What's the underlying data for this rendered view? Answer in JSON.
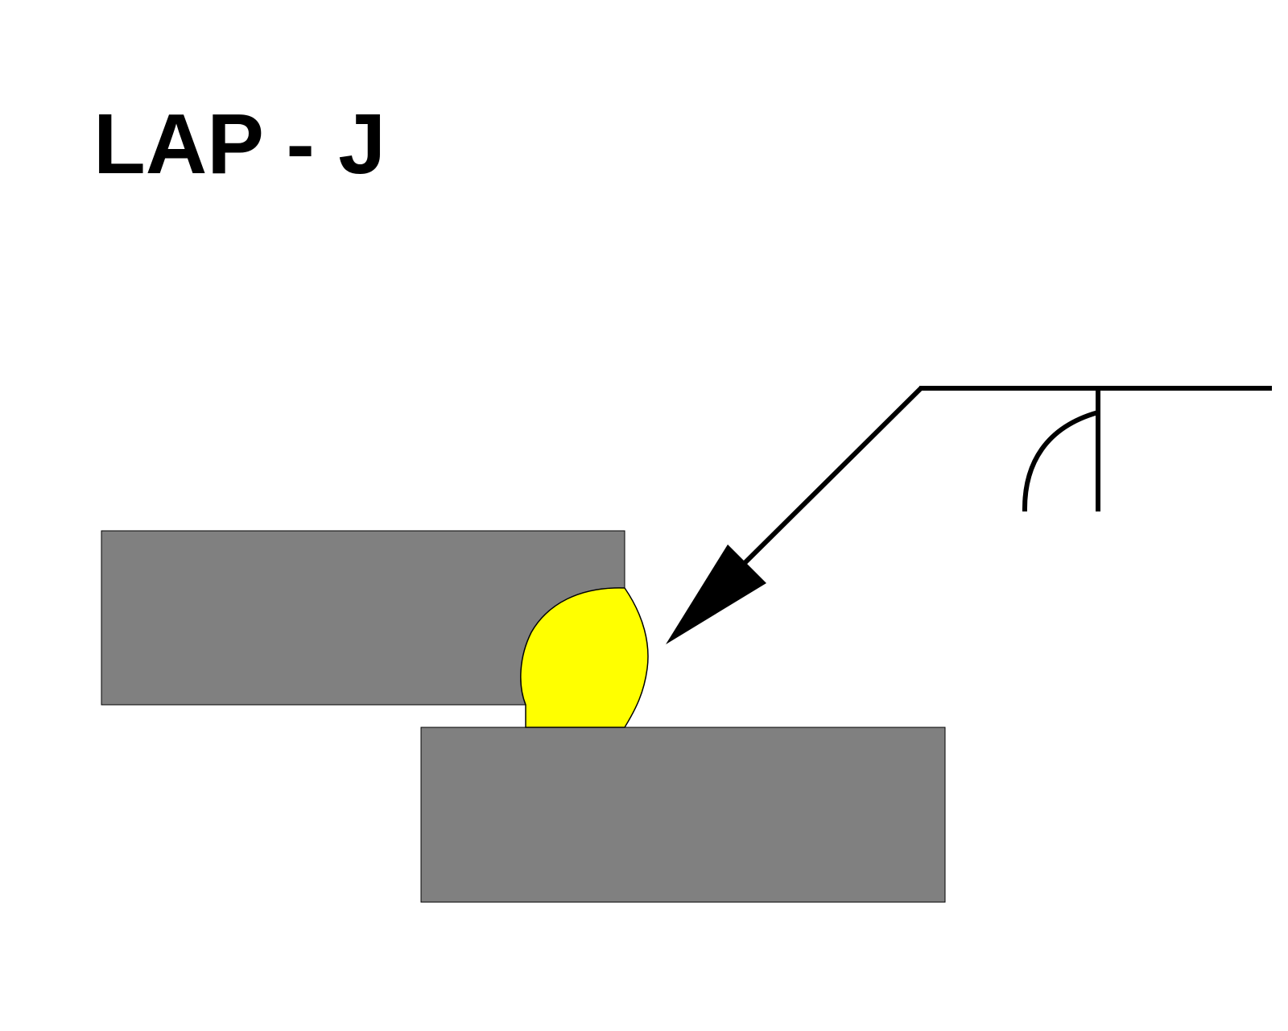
{
  "title": "LAP - J",
  "colors": {
    "background": "#ffffff",
    "plate_fill": "#808080",
    "weld_fill": "#ffff00",
    "line": "#000000"
  },
  "symbols": {
    "weld_symbol": "j-groove-weld-symbol",
    "arrow": "arrow-pointer"
  }
}
